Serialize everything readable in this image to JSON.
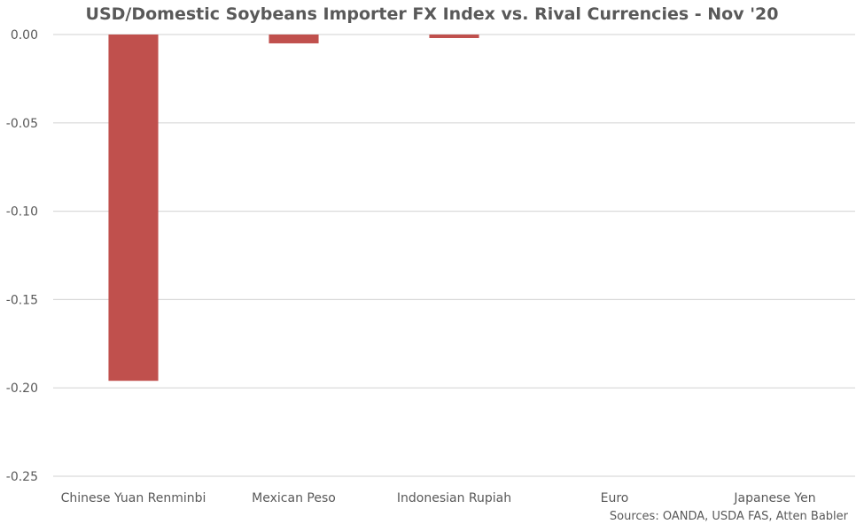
{
  "chart_data": {
    "type": "bar",
    "title": "USD/Domestic Soybeans Importer FX Index vs. Rival Currencies - Nov '20",
    "source": "Sources: OANDA, USDA FAS, Atten Babler",
    "categories": [
      "Chinese Yuan Renminbi",
      "Mexican Peso",
      "Indonesian Rupiah",
      "Euro",
      "Japanese Yen"
    ],
    "values": [
      -0.196,
      -0.005,
      -0.002,
      0.0,
      0.0
    ],
    "ylim": [
      -0.25,
      0.0
    ],
    "yticks": [
      0.0,
      -0.05,
      -0.1,
      -0.15,
      -0.2,
      -0.25
    ],
    "ytick_labels": [
      "0.00",
      "-0.05",
      "-0.10",
      "-0.15",
      "-0.20",
      "-0.25"
    ],
    "xlabel": "",
    "ylabel": "",
    "grid": true,
    "legend": "none",
    "bar_color": "#c0504d",
    "grid_color": "#d9d9d9",
    "text_color": "#595959"
  }
}
